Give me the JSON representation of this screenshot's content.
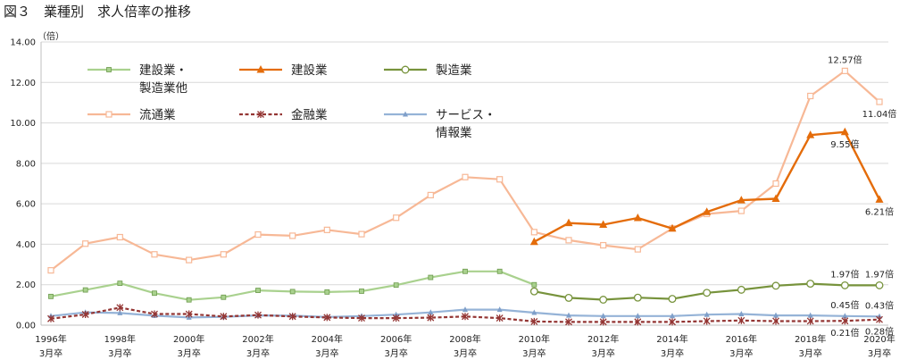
{
  "title": "図３　業種別　求人倍率の推移",
  "unit": "（倍）",
  "chart_data": {
    "type": "line",
    "ylim": [
      0,
      14
    ],
    "yticks": [
      "0.00",
      "2.00",
      "4.00",
      "6.00",
      "8.00",
      "10.00",
      "12.00",
      "14.00"
    ],
    "x": [
      1996,
      1997,
      1998,
      1999,
      2000,
      2001,
      2002,
      2003,
      2004,
      2005,
      2006,
      2007,
      2008,
      2009,
      2010,
      2011,
      2012,
      2013,
      2014,
      2015,
      2016,
      2017,
      2018,
      2019,
      2020
    ],
    "xtick_labels": [
      {
        "year": 1996,
        "l1": "1996年",
        "l2": "3月卒"
      },
      {
        "year": 1998,
        "l1": "1998年",
        "l2": "3月卒"
      },
      {
        "year": 2000,
        "l1": "2000年",
        "l2": "3月卒"
      },
      {
        "year": 2002,
        "l1": "2002年",
        "l2": "3月卒"
      },
      {
        "year": 2004,
        "l1": "2004年",
        "l2": "3月卒"
      },
      {
        "year": 2006,
        "l1": "2006年",
        "l2": "3月卒"
      },
      {
        "year": 2008,
        "l1": "2008年",
        "l2": "3月卒"
      },
      {
        "year": 2010,
        "l1": "2010年",
        "l2": "3月卒"
      },
      {
        "year": 2012,
        "l1": "2012年",
        "l2": "3月卒"
      },
      {
        "year": 2014,
        "l1": "2014年",
        "l2": "3月卒"
      },
      {
        "year": 2016,
        "l1": "2016年",
        "l2": "3月卒"
      },
      {
        "year": 2018,
        "l1": "2018年",
        "l2": "3月卒"
      },
      {
        "year": 2020,
        "l1": "2020年",
        "l2": "3月卒"
      }
    ],
    "series": [
      {
        "name": "流通業",
        "color": "#f7b896",
        "marker": "square-open",
        "values": [
          2.71,
          4.03,
          4.35,
          3.5,
          3.22,
          3.5,
          4.48,
          4.42,
          4.71,
          4.5,
          5.31,
          6.43,
          7.32,
          7.21,
          4.6,
          4.2,
          3.95,
          3.75,
          4.78,
          5.5,
          5.65,
          7.0,
          11.33,
          12.57,
          11.04
        ]
      },
      {
        "name": "建設業・製造業他",
        "color": "#a9d18e",
        "marker": "square-filled",
        "values": [
          1.42,
          1.74,
          2.07,
          1.58,
          1.25,
          1.38,
          1.72,
          1.66,
          1.64,
          1.68,
          1.98,
          2.36,
          2.66,
          2.66,
          2.0,
          null,
          null,
          null,
          null,
          null,
          null,
          null,
          null,
          null,
          null
        ]
      },
      {
        "name": "製造業",
        "color": "#77933c",
        "marker": "circle-open",
        "values": [
          null,
          null,
          null,
          null,
          null,
          null,
          null,
          null,
          null,
          null,
          null,
          null,
          null,
          null,
          1.67,
          1.35,
          1.26,
          1.36,
          1.3,
          1.6,
          1.75,
          1.95,
          2.05,
          1.97,
          1.97
        ]
      },
      {
        "name": "建設業",
        "color": "#e46c0a",
        "marker": "triangle",
        "values": [
          null,
          null,
          null,
          null,
          null,
          null,
          null,
          null,
          null,
          null,
          null,
          null,
          null,
          null,
          4.12,
          5.05,
          4.97,
          5.3,
          4.78,
          5.6,
          6.18,
          6.25,
          9.4,
          9.55,
          6.21
        ]
      },
      {
        "name": "サービス・情報業",
        "color": "#95b3d7",
        "marker": "triangle-small",
        "values": [
          0.45,
          0.63,
          0.6,
          0.47,
          0.38,
          0.41,
          0.48,
          0.47,
          0.4,
          0.45,
          0.52,
          0.63,
          0.77,
          0.77,
          0.62,
          0.48,
          0.45,
          0.45,
          0.45,
          0.52,
          0.55,
          0.48,
          0.48,
          0.45,
          0.43
        ]
      },
      {
        "name": "金融業",
        "color": "#943634",
        "marker": "star",
        "dashed": true,
        "values": [
          0.32,
          0.53,
          0.87,
          0.55,
          0.55,
          0.43,
          0.5,
          0.43,
          0.38,
          0.35,
          0.35,
          0.37,
          0.43,
          0.35,
          0.18,
          0.16,
          0.16,
          0.16,
          0.16,
          0.2,
          0.23,
          0.2,
          0.2,
          0.21,
          0.28
        ]
      }
    ],
    "legend": [
      {
        "series": "建設業・製造業他",
        "lines": [
          "建設業・",
          "製造業他"
        ]
      },
      {
        "series": "建設業",
        "lines": [
          "建設業"
        ]
      },
      {
        "series": "製造業",
        "lines": [
          "製造業"
        ]
      },
      {
        "series": "流通業",
        "lines": [
          "流通業"
        ]
      },
      {
        "series": "金融業",
        "lines": [
          "金融業"
        ]
      },
      {
        "series": "サービス・情報業",
        "lines": [
          "サービス・",
          "情報業"
        ]
      }
    ],
    "data_labels": [
      {
        "text": "12.57倍",
        "year": 2019,
        "value": 12.57,
        "anchor": "above"
      },
      {
        "text": "11.04倍",
        "year": 2020,
        "value": 11.04,
        "anchor": "below"
      },
      {
        "text": "9.55倍",
        "year": 2019,
        "value": 9.55,
        "anchor": "below"
      },
      {
        "text": "6.21倍",
        "year": 2020,
        "value": 6.21,
        "anchor": "below"
      },
      {
        "text": "1.97倍",
        "year": 2019,
        "value": 1.97,
        "anchor": "above"
      },
      {
        "text": "1.97倍",
        "year": 2020,
        "value": 1.97,
        "anchor": "above"
      },
      {
        "text": "0.45倍",
        "year": 2019,
        "value": 0.45,
        "anchor": "above"
      },
      {
        "text": "0.43倍",
        "year": 2020,
        "value": 0.43,
        "anchor": "above"
      },
      {
        "text": "0.28倍",
        "year": 2020,
        "value": 0.28,
        "anchor": "below"
      },
      {
        "text": "0.21倍",
        "year": 2019,
        "value": 0.21,
        "anchor": "below"
      }
    ]
  }
}
